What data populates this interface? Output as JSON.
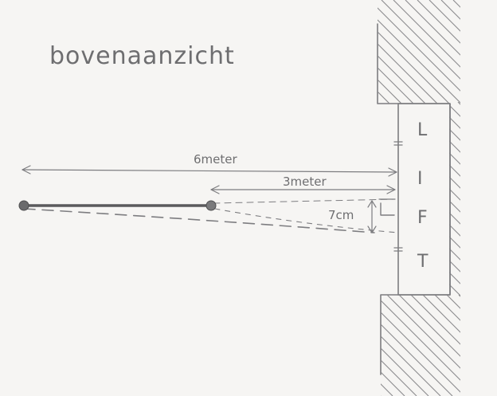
{
  "title": "bovenaanzicht",
  "dimensions": {
    "total_length": "6meter",
    "half_length": "3meter",
    "deflection": "7cm"
  },
  "lift_letters": [
    "L",
    "I",
    "F",
    "T"
  ],
  "colors": {
    "paper": "#f6f5f3",
    "pencil": "#7d7d80",
    "bar": "#5a5a5c"
  }
}
